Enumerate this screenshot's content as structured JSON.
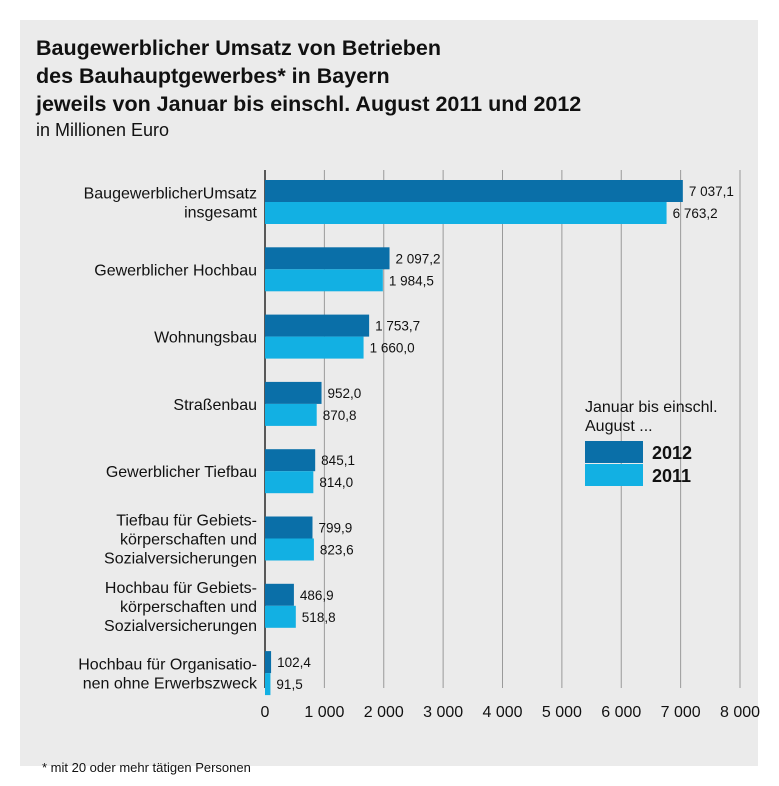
{
  "title_lines": [
    "Baugewerblicher Umsatz von Betrieben",
    "des Bauhauptgewerbes* in Bayern",
    "jeweils von Januar bis einschl. August 2011 und 2012"
  ],
  "subtitle": "in Millionen Euro",
  "footnote": "* mit 20 oder mehr tätigen Personen",
  "colors": {
    "2012": "#0a6fa8",
    "2011": "#12b0e3",
    "grid": "#9a9a9a",
    "panel": "#ebebeb"
  },
  "chart_data": {
    "type": "bar",
    "orientation": "horizontal",
    "categories": [
      [
        "BaugewerblicherUmsatz",
        "insgesamt"
      ],
      [
        "Gewerblicher Hochbau"
      ],
      [
        "Wohnungsbau"
      ],
      [
        "Straßenbau"
      ],
      [
        "Gewerblicher Tiefbau"
      ],
      [
        "Tiefbau für Gebiets-",
        "körperschaften und",
        "Sozialversicherungen"
      ],
      [
        "Hochbau für Gebiets-",
        "körperschaften und",
        "Sozialversicherungen"
      ],
      [
        "Hochbau für Organisatio-",
        "nen ohne Erwerbszweck"
      ]
    ],
    "series": [
      {
        "name": "2012",
        "values": [
          7037.1,
          2097.2,
          1753.7,
          952.0,
          845.1,
          799.9,
          486.9,
          102.4
        ],
        "labels": [
          "7 037,1",
          "2 097,2",
          "1 753,7",
          "952,0",
          "845,1",
          "799,9",
          "486,9",
          "102,4"
        ]
      },
      {
        "name": "2011",
        "values": [
          6763.2,
          1984.5,
          1660.0,
          870.8,
          814.0,
          823.6,
          518.8,
          91.5
        ],
        "labels": [
          "6 763,2",
          "1 984,5",
          "1 660,0",
          "870,8",
          "814,0",
          "823,6",
          "518,8",
          "91,5"
        ]
      }
    ],
    "xlim": [
      0,
      8000
    ],
    "xticks": [
      0,
      1000,
      2000,
      3000,
      4000,
      5000,
      6000,
      7000,
      8000
    ],
    "xtick_labels": [
      "0",
      "1 000",
      "2 000",
      "3 000",
      "4 000",
      "5 000",
      "6 000",
      "7 000",
      "8 000"
    ],
    "grid": true,
    "legend": {
      "title_lines": [
        "Januar bis einschl.",
        "August ..."
      ],
      "placement": "right",
      "entries": [
        "2012",
        "2011"
      ]
    }
  }
}
